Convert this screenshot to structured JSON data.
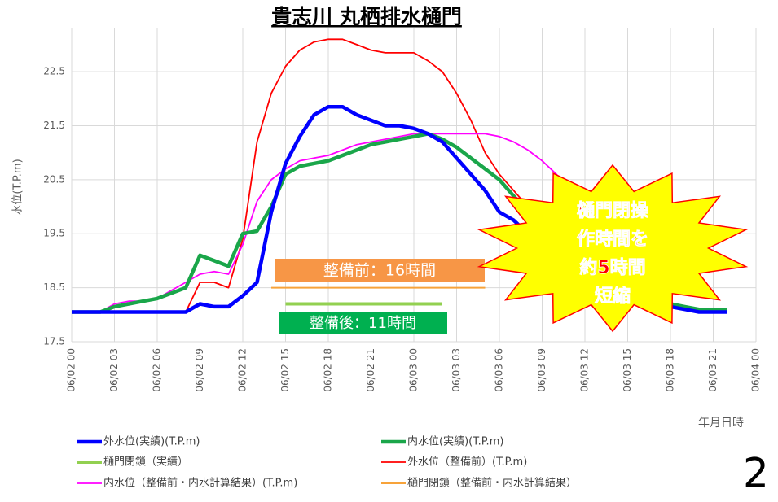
{
  "chart_data": {
    "type": "line",
    "title": "貴志川 丸栖排水樋門",
    "y_label": "水位(T.P.m)",
    "x_label": "年月日時",
    "page_number": "2",
    "categories": [
      "06/02 00",
      null,
      null,
      "06/02 03",
      null,
      null,
      "06/02 06",
      null,
      null,
      "06/02 09",
      null,
      null,
      "06/02 12",
      null,
      null,
      "06/02 15",
      null,
      null,
      "06/02 18",
      null,
      null,
      "06/02 21",
      null,
      null,
      "06/03 00",
      null,
      null,
      "06/03 03",
      null,
      null,
      "06/03 06",
      null,
      null,
      "06/03 09",
      null,
      null,
      "06/03 12",
      null,
      null,
      "06/03 15",
      null,
      null,
      "06/03 18",
      null,
      null,
      "06/03 21",
      null,
      null,
      "06/04 00"
    ],
    "ylim": [
      17.5,
      23.3
    ],
    "yticks": [
      17.5,
      18.5,
      19.5,
      20.5,
      21.5,
      22.5
    ],
    "grid": true,
    "series": [
      {
        "name": "外水位(実績)(T.P.m)",
        "color": "#0000ff",
        "width": 4.5,
        "values": [
          18.05,
          18.05,
          18.05,
          18.05,
          18.05,
          18.05,
          18.05,
          18.05,
          18.05,
          18.2,
          18.15,
          18.15,
          18.35,
          18.6,
          19.9,
          20.8,
          21.3,
          21.7,
          21.85,
          21.85,
          21.7,
          21.6,
          21.5,
          21.5,
          21.45,
          21.35,
          21.2,
          20.9,
          20.6,
          20.3,
          19.9,
          19.75,
          19.5,
          19.2,
          19.0,
          18.8,
          18.6,
          18.5,
          18.4,
          18.3,
          18.25,
          18.2,
          18.15,
          18.1,
          18.05,
          18.05,
          18.05,
          null,
          null
        ]
      },
      {
        "name": "内水位(実績)(T.P.m)",
        "color": "#1aa64a",
        "width": 4.5,
        "values": [
          18.05,
          18.05,
          18.05,
          18.15,
          18.2,
          18.25,
          18.3,
          18.4,
          18.5,
          19.1,
          19.0,
          18.9,
          19.5,
          19.55,
          20.0,
          20.6,
          20.75,
          20.8,
          20.85,
          20.95,
          21.05,
          21.15,
          21.2,
          21.25,
          21.3,
          21.35,
          21.25,
          21.1,
          20.9,
          20.7,
          20.5,
          20.2,
          19.9,
          19.6,
          19.3,
          19.0,
          18.8,
          18.6,
          18.5,
          18.4,
          18.3,
          18.25,
          18.2,
          18.15,
          18.1,
          18.1,
          18.1,
          null,
          null
        ]
      },
      {
        "name": "樋門閉鎖（実績）",
        "color": "#92d050",
        "width": 4,
        "values": [
          null,
          null,
          null,
          null,
          null,
          null,
          null,
          null,
          null,
          null,
          null,
          null,
          null,
          null,
          null,
          18.2,
          18.2,
          18.2,
          18.2,
          18.2,
          18.2,
          18.2,
          18.2,
          18.2,
          18.2,
          18.2,
          18.2,
          null,
          null,
          null,
          null,
          null,
          null,
          null,
          null,
          null,
          null,
          null,
          null,
          null,
          null,
          null,
          null,
          null,
          null,
          null,
          null,
          null,
          null
        ]
      },
      {
        "name": "外水位（整備前）(T.P.m)",
        "color": "#ff0000",
        "width": 1.8,
        "values": [
          18.05,
          18.05,
          18.05,
          18.05,
          18.05,
          18.05,
          18.05,
          18.05,
          18.05,
          18.6,
          18.6,
          18.5,
          19.4,
          21.2,
          22.1,
          22.6,
          22.9,
          23.05,
          23.1,
          23.1,
          23.0,
          22.9,
          22.85,
          22.85,
          22.85,
          22.7,
          22.5,
          22.1,
          21.6,
          21.0,
          20.6,
          20.3,
          20.0,
          19.7,
          19.4,
          19.1,
          18.9,
          18.7,
          18.5,
          18.4,
          18.3,
          18.2,
          18.15,
          18.1,
          18.05,
          18.05,
          18.05,
          null,
          null
        ]
      },
      {
        "name": "内水位（整備前・内水計算結果）(T.P.m)",
        "color": "#ff00ff",
        "width": 1.8,
        "values": [
          18.05,
          18.05,
          18.05,
          18.2,
          18.25,
          18.25,
          18.3,
          18.45,
          18.6,
          18.75,
          18.8,
          18.75,
          19.3,
          20.1,
          20.5,
          20.7,
          20.85,
          20.9,
          20.95,
          21.05,
          21.15,
          21.2,
          21.25,
          21.3,
          21.35,
          21.35,
          21.35,
          21.35,
          21.35,
          21.35,
          21.3,
          21.2,
          21.05,
          20.85,
          20.6,
          20.3,
          20.0,
          19.6,
          19.3,
          19.0,
          18.7,
          18.4,
          18.2,
          18.1,
          18.05,
          18.05,
          18.05,
          null,
          null
        ]
      },
      {
        "name": "樋門閉鎖（整備前・内水計算結果）",
        "color": "#f7a33a",
        "width": 2,
        "values": [
          null,
          null,
          null,
          null,
          null,
          null,
          null,
          null,
          null,
          null,
          null,
          null,
          null,
          null,
          18.5,
          18.5,
          18.5,
          18.5,
          18.5,
          18.5,
          18.5,
          18.5,
          18.5,
          18.5,
          18.5,
          18.5,
          18.5,
          18.5,
          18.5,
          18.5,
          null,
          null,
          null,
          null,
          null,
          null,
          null,
          null,
          null,
          null,
          null,
          null,
          null,
          null,
          null,
          null,
          null,
          null,
          null
        ]
      }
    ],
    "annotations": [
      {
        "text": "整備前：16時間",
        "color": "#f79646"
      },
      {
        "text": "整備後：11時間",
        "color": "#00b050"
      }
    ],
    "callout": [
      "樋門閉操",
      "作時間を",
      "約5時間",
      "短縮"
    ]
  }
}
